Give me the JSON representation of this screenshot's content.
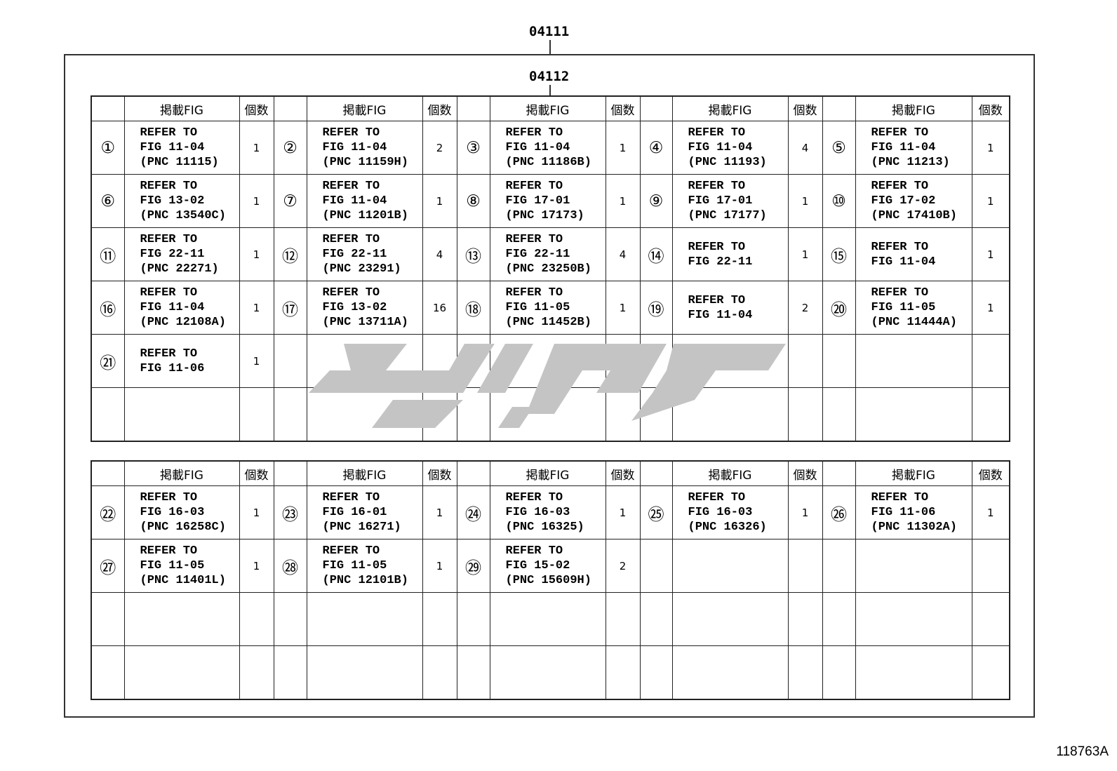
{
  "labels": {
    "top": "04111",
    "inner": "04112",
    "drawing_code": "118763A"
  },
  "header": {
    "fig": "掲載FIG",
    "qty": "個数"
  },
  "watermark_color": "#c4c4c4",
  "tables": [
    {
      "rows": [
        [
          {
            "num": "①",
            "lines": [
              "REFER TO",
              "FIG 11-04",
              "(PNC 11115)"
            ],
            "qty": "1"
          },
          {
            "num": "②",
            "lines": [
              "REFER TO",
              "FIG 11-04",
              "(PNC 11159H)"
            ],
            "qty": "2"
          },
          {
            "num": "③",
            "lines": [
              "REFER TO",
              "FIG 11-04",
              "(PNC 11186B)"
            ],
            "qty": "1"
          },
          {
            "num": "④",
            "lines": [
              "REFER TO",
              "FIG 11-04",
              "(PNC 11193)"
            ],
            "qty": "4"
          },
          {
            "num": "⑤",
            "lines": [
              "REFER TO",
              "FIG 11-04",
              "(PNC 11213)"
            ],
            "qty": "1"
          }
        ],
        [
          {
            "num": "⑥",
            "lines": [
              "REFER TO",
              "FIG 13-02",
              "(PNC 13540C)"
            ],
            "qty": "1"
          },
          {
            "num": "⑦",
            "lines": [
              "REFER TO",
              "FIG 11-04",
              "(PNC 11201B)"
            ],
            "qty": "1"
          },
          {
            "num": "⑧",
            "lines": [
              "REFER TO",
              "FIG 17-01",
              "(PNC 17173)"
            ],
            "qty": "1"
          },
          {
            "num": "⑨",
            "lines": [
              "REFER TO",
              "FIG 17-01",
              "(PNC 17177)"
            ],
            "qty": "1"
          },
          {
            "num": "⑩",
            "lines": [
              "REFER TO",
              "FIG 17-02",
              "(PNC 17410B)"
            ],
            "qty": "1"
          }
        ],
        [
          {
            "num": "⑪",
            "lines": [
              "REFER TO",
              "FIG 22-11",
              "(PNC 22271)"
            ],
            "qty": "1"
          },
          {
            "num": "⑫",
            "lines": [
              "REFER TO",
              "FIG 22-11",
              "(PNC 23291)"
            ],
            "qty": "4"
          },
          {
            "num": "⑬",
            "lines": [
              "REFER TO",
              "FIG 22-11",
              "(PNC 23250B)"
            ],
            "qty": "4"
          },
          {
            "num": "⑭",
            "lines": [
              "REFER TO",
              "FIG 22-11"
            ],
            "qty": "1"
          },
          {
            "num": "⑮",
            "lines": [
              "REFER TO",
              "FIG 11-04"
            ],
            "qty": "1"
          }
        ],
        [
          {
            "num": "⑯",
            "lines": [
              "REFER TO",
              "FIG 11-04",
              "(PNC 12108A)"
            ],
            "qty": "1"
          },
          {
            "num": "⑰",
            "lines": [
              "REFER TO",
              "FIG 13-02",
              "(PNC 13711A)"
            ],
            "qty": "16"
          },
          {
            "num": "⑱",
            "lines": [
              "REFER TO",
              "FIG 11-05",
              "(PNC 11452B)"
            ],
            "qty": "1"
          },
          {
            "num": "⑲",
            "lines": [
              "REFER TO",
              "FIG 11-04"
            ],
            "qty": "2"
          },
          {
            "num": "⑳",
            "lines": [
              "REFER TO",
              "FIG 11-05",
              "(PNC 11444A)"
            ],
            "qty": "1"
          }
        ],
        [
          {
            "num": "㉑",
            "lines": [
              "REFER TO",
              "FIG 11-06"
            ],
            "qty": "1"
          },
          null,
          null,
          null,
          null
        ],
        [
          null,
          null,
          null,
          null,
          null
        ]
      ]
    },
    {
      "rows": [
        [
          {
            "num": "㉒",
            "lines": [
              "REFER TO",
              "FIG 16-03",
              "(PNC 16258C)"
            ],
            "qty": "1"
          },
          {
            "num": "㉓",
            "lines": [
              "REFER TO",
              "FIG 16-01",
              "(PNC 16271)"
            ],
            "qty": "1"
          },
          {
            "num": "㉔",
            "lines": [
              "REFER TO",
              "FIG 16-03",
              "(PNC 16325)"
            ],
            "qty": "1"
          },
          {
            "num": "㉕",
            "lines": [
              "REFER TO",
              "FIG 16-03",
              "(PNC 16326)"
            ],
            "qty": "1"
          },
          {
            "num": "㉖",
            "lines": [
              "REFER TO",
              "FIG 11-06",
              "(PNC 11302A)"
            ],
            "qty": "1"
          }
        ],
        [
          {
            "num": "㉗",
            "lines": [
              "REFER TO",
              "FIG 11-05",
              "(PNC 11401L)"
            ],
            "qty": "1"
          },
          {
            "num": "㉘",
            "lines": [
              "REFER TO",
              "FIG 11-05",
              "(PNC 12101B)"
            ],
            "qty": "1"
          },
          {
            "num": "㉙",
            "lines": [
              "REFER TO",
              "FIG 15-02",
              "(PNC 15609H)"
            ],
            "qty": "2"
          },
          null,
          null
        ],
        [
          null,
          null,
          null,
          null,
          null
        ],
        [
          null,
          null,
          null,
          null,
          null
        ]
      ]
    }
  ]
}
